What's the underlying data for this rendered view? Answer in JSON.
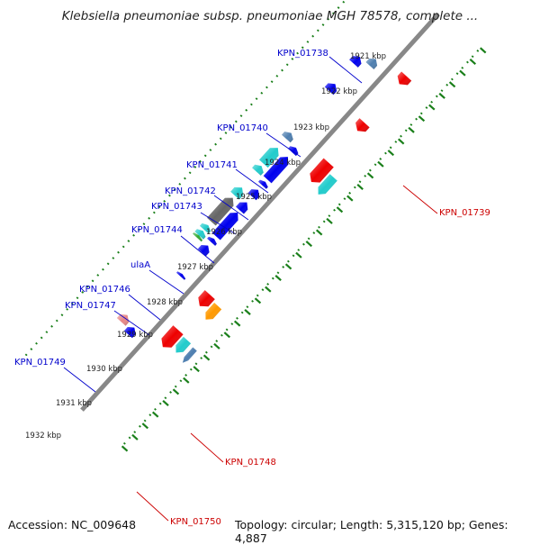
{
  "title": "Klebsiella pneumoniae subsp. pneumoniae MGH 78578, complete ...",
  "footer": {
    "accession": "Accession: NC_009648",
    "summary": "Topology: circular; Length: 5,315,120 bp; Genes: 4,887"
  },
  "colors": {
    "backbone": "#888888",
    "tick": "#1a7f1a",
    "forward_label": "#0000cc",
    "reverse_label": "#cc0000",
    "blue": "#0000ee",
    "red": "#ee0000",
    "cyan": "#22cccc",
    "gray": "#666666",
    "steelblue": "#4f7fb0",
    "orange": "#ff9900",
    "pink": "#e88888",
    "green": "#33aa33"
  },
  "scale_labels": [
    {
      "text": "1921 kbp",
      "kbp": 1921
    },
    {
      "text": "1922 kbp",
      "kbp": 1922
    },
    {
      "text": "1923 kbp",
      "kbp": 1923
    },
    {
      "text": "1924 kbp",
      "kbp": 1924
    },
    {
      "text": "1925 kbp",
      "kbp": 1925
    },
    {
      "text": "1926 kbp",
      "kbp": 1926
    },
    {
      "text": "1927 kbp",
      "kbp": 1927
    },
    {
      "text": "1928 kbp",
      "kbp": 1928
    },
    {
      "text": "1929 kbp",
      "kbp": 1929
    },
    {
      "text": "1930 kbp",
      "kbp": 1930
    },
    {
      "text": "1931 kbp",
      "kbp": 1931
    },
    {
      "text": "1932 kbp",
      "kbp": 1932
    }
  ],
  "gene_labels_forward": [
    "KPN_01738",
    "KPN_01740",
    "KPN_01741",
    "KPN_01742",
    "KPN_01743",
    "KPN_01744",
    "ulaA",
    "KPN_01746",
    "KPN_01747",
    "KPN_01749"
  ],
  "gene_labels_reverse": [
    "KPN_01739",
    "KPN_01748",
    "KPN_01750"
  ],
  "features": [
    {
      "strand": "forward",
      "track": 1,
      "start_kbp": 1921.55,
      "end_kbp": 1921.85,
      "color": "blue"
    },
    {
      "strand": "forward",
      "track": 1,
      "start_kbp": 1923.7,
      "end_kbp": 1923.95,
      "color": "steelblue"
    },
    {
      "strand": "forward",
      "track": 2,
      "start_kbp": 1923.95,
      "end_kbp": 1924.15,
      "color": "blue"
    },
    {
      "strand": "forward",
      "track": 1,
      "start_kbp": 1924.35,
      "end_kbp": 1925.05,
      "color": "cyan"
    },
    {
      "strand": "forward",
      "track": 2,
      "start_kbp": 1924.35,
      "end_kbp": 1925.35,
      "color": "blue"
    },
    {
      "strand": "forward",
      "track": 1,
      "start_kbp": 1925.15,
      "end_kbp": 1925.4,
      "color": "cyan"
    },
    {
      "strand": "forward",
      "track": 2,
      "start_kbp": 1925.45,
      "end_kbp": 1925.6,
      "color": "blue"
    },
    {
      "strand": "forward",
      "track": 2,
      "start_kbp": 1925.8,
      "end_kbp": 1926.1,
      "color": "blue"
    },
    {
      "strand": "forward",
      "track": 1,
      "start_kbp": 1926.1,
      "end_kbp": 1926.45,
      "color": "cyan"
    },
    {
      "strand": "forward",
      "track": 2,
      "start_kbp": 1926.35,
      "end_kbp": 1926.7,
      "color": "blue"
    },
    {
      "strand": "forward",
      "track": 1,
      "start_kbp": 1926.55,
      "end_kbp": 1927.6,
      "color": "gray"
    },
    {
      "strand": "forward",
      "track": 2,
      "start_kbp": 1926.8,
      "end_kbp": 1927.85,
      "color": "blue"
    },
    {
      "strand": "forward",
      "track": 1,
      "start_kbp": 1927.75,
      "end_kbp": 1927.95,
      "color": "cyan"
    },
    {
      "strand": "forward",
      "track": 1,
      "start_kbp": 1928.0,
      "end_kbp": 1928.2,
      "color": "cyan"
    },
    {
      "strand": "forward",
      "track": 1,
      "start_kbp": 1928.2,
      "end_kbp": 1928.3,
      "color": "green"
    },
    {
      "strand": "forward",
      "track": 2,
      "start_kbp": 1927.95,
      "end_kbp": 1928.1,
      "color": "blue"
    },
    {
      "strand": "forward",
      "track": 2,
      "start_kbp": 1928.25,
      "end_kbp": 1928.55,
      "color": "blue"
    },
    {
      "strand": "forward",
      "track": 2,
      "start_kbp": 1929.5,
      "end_kbp": 1929.6,
      "color": "blue"
    },
    {
      "strand": "forward",
      "track": 1,
      "start_kbp": 1931.7,
      "end_kbp": 1932.0,
      "color": "pink"
    },
    {
      "strand": "forward",
      "track": 2,
      "start_kbp": 1931.85,
      "end_kbp": 1932.15,
      "color": "blue"
    },
    {
      "strand": "forward",
      "track": 1,
      "start_kbp": 1920.35,
      "end_kbp": 1920.65,
      "color": "blue"
    },
    {
      "strand": "forward",
      "track": 2,
      "start_kbp": 1920.05,
      "end_kbp": 1920.35,
      "color": "steelblue"
    },
    {
      "strand": "reverse",
      "track": 1,
      "start_kbp": 1921.85,
      "end_kbp": 1922.2,
      "color": "red"
    },
    {
      "strand": "reverse",
      "track": 1,
      "start_kbp": 1923.6,
      "end_kbp": 1924.45,
      "color": "red"
    },
    {
      "strand": "reverse",
      "track": 2,
      "start_kbp": 1923.85,
      "end_kbp": 1924.6,
      "color": "cyan"
    },
    {
      "strand": "reverse",
      "track": 1,
      "start_kbp": 1929.4,
      "end_kbp": 1929.9,
      "color": "red"
    },
    {
      "strand": "reverse",
      "track": 2,
      "start_kbp": 1929.5,
      "end_kbp": 1930.1,
      "color": "orange"
    },
    {
      "strand": "reverse",
      "track": 1,
      "start_kbp": 1930.95,
      "end_kbp": 1931.7,
      "color": "red"
    },
    {
      "strand": "reverse",
      "track": 2,
      "start_kbp": 1931.0,
      "end_kbp": 1931.55,
      "color": "cyan"
    },
    {
      "strand": "reverse",
      "track": 3,
      "start_kbp": 1931.05,
      "end_kbp": 1931.65,
      "color": "steelblue"
    },
    {
      "strand": "reverse",
      "track": 1,
      "start_kbp": 1919.8,
      "end_kbp": 1920.15,
      "color": "red"
    }
  ]
}
